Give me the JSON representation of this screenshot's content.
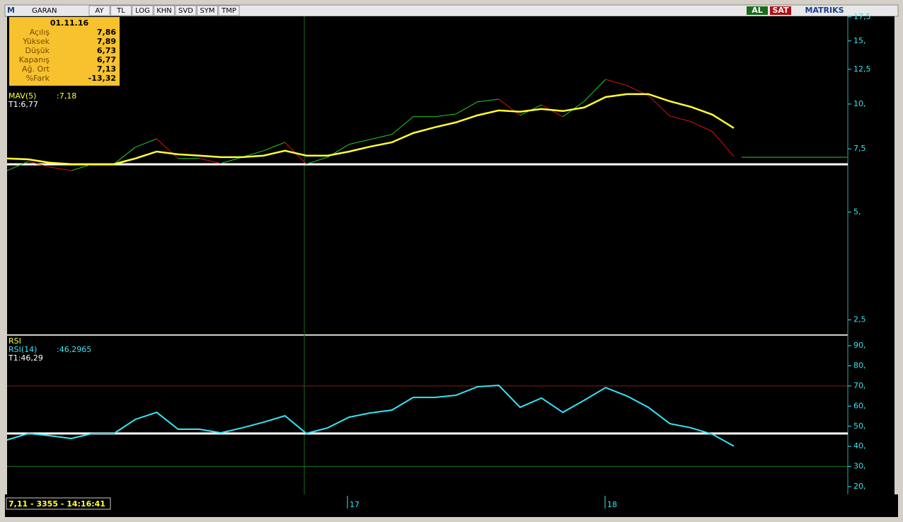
{
  "toolbar": {
    "logo": "M",
    "symbol": "GARAN",
    "buttons": [
      "AY",
      "TL",
      "LOG",
      "KHN",
      "SVD",
      "SYM",
      "TMP"
    ],
    "buy": "AL",
    "sell": "SAT",
    "brand": "MATRIKS"
  },
  "info": {
    "date": "01.11.16",
    "rows": [
      {
        "label": "Açılış",
        "value": "7,86"
      },
      {
        "label": "Yüksek",
        "value": "7,89"
      },
      {
        "label": "Düşük",
        "value": "6,73"
      },
      {
        "label": "Kapanış",
        "value": "6,77"
      },
      {
        "label": "Ağ. Ort",
        "value": "7,13"
      },
      {
        "label": "%Fark",
        "value": "-13,32"
      }
    ]
  },
  "price_panel": {
    "indicator": "MAV(5)",
    "indicator_value": ":7,18",
    "cursor": "T1:6,77",
    "log_scale": true,
    "ylim": [
      2.3,
      17.65
    ],
    "yticks": [
      {
        "value": 17.5,
        "label": "17,5"
      },
      {
        "value": 15,
        "label": "15,"
      },
      {
        "value": 12.5,
        "label": "12,5"
      },
      {
        "value": 10,
        "label": "10,"
      },
      {
        "value": 7.5,
        "label": "7,5"
      },
      {
        "value": 5,
        "label": "5,"
      },
      {
        "value": 2.5,
        "label": "2,5"
      }
    ],
    "close": [
      6.52,
      6.92,
      6.67,
      6.52,
      6.8,
      6.8,
      7.58,
      8.0,
      7.05,
      7.05,
      6.83,
      7.11,
      7.41,
      7.82,
      6.8,
      7.11,
      7.72,
      7.97,
      8.23,
      9.22,
      9.22,
      9.38,
      10.14,
      10.32,
      9.3,
      9.95,
      9.22,
      10.18,
      11.72,
      11.26,
      10.56,
      9.26,
      8.93,
      8.38,
      7.14
    ],
    "mav": [
      7.05,
      7.01,
      6.86,
      6.8,
      6.8,
      6.8,
      7.05,
      7.37,
      7.24,
      7.18,
      7.11,
      7.11,
      7.18,
      7.41,
      7.18,
      7.18,
      7.37,
      7.61,
      7.82,
      8.3,
      8.61,
      8.89,
      9.3,
      9.6,
      9.52,
      9.69,
      9.56,
      9.78,
      10.46,
      10.66,
      10.66,
      10.18,
      9.82,
      9.34,
      8.57
    ],
    "up_color": "#22d022",
    "down_color": "#e01010",
    "mav_color": "#ffff33"
  },
  "rsi_panel": {
    "title": "RSI",
    "indicator": "RSI(14)",
    "indicator_value": ":46,2965",
    "cursor": "T1:46,29",
    "ylim": [
      16.5,
      94.6
    ],
    "yticks": [
      {
        "value": 90,
        "label": "90,"
      },
      {
        "value": 80,
        "label": "80,"
      },
      {
        "value": 70,
        "label": "70,"
      },
      {
        "value": 60,
        "label": "60,"
      },
      {
        "value": 50,
        "label": "50,"
      },
      {
        "value": 40,
        "label": "40,"
      },
      {
        "value": 30,
        "label": "30,"
      },
      {
        "value": 20,
        "label": "20,"
      }
    ],
    "upper_level": 70,
    "lower_level": 30,
    "values": [
      43.2,
      46.4,
      45.3,
      43.9,
      46.4,
      46.4,
      53.4,
      56.9,
      48.5,
      48.5,
      46.7,
      49.2,
      52.0,
      55.2,
      46.4,
      49.2,
      54.5,
      56.6,
      58.0,
      64.3,
      64.3,
      65.4,
      69.6,
      70.3,
      59.4,
      64.0,
      56.9,
      62.9,
      69.2,
      65.0,
      59.4,
      51.3,
      49.2,
      46.0,
      40.1
    ],
    "color": "#33e6f5"
  },
  "x_labels": [
    "17",
    "18"
  ],
  "status": "7,11 - 3355 - 14:16:41"
}
